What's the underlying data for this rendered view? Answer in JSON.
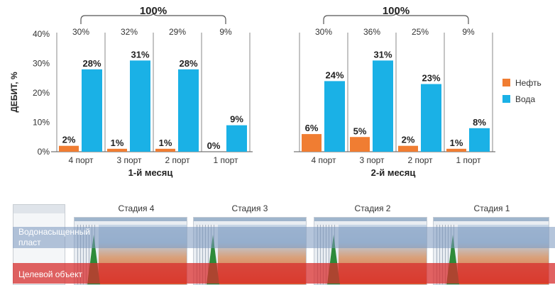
{
  "chart_data": {
    "type": "bar",
    "ylabel": "ДЕБИТ, %",
    "yticks": [
      "0%",
      "10%",
      "20%",
      "30%",
      "40%"
    ],
    "ylim": [
      0,
      40
    ],
    "legend": [
      {
        "name": "Нефть",
        "color": "#f07d32"
      },
      {
        "name": "Вода",
        "color": "#1ab1e6"
      }
    ],
    "groups": [
      {
        "label": "1-й месяц",
        "total": "100%",
        "categories": [
          "4 порт",
          "3 порт",
          "2 порт",
          "1 порт"
        ],
        "shares": [
          "30%",
          "32%",
          "29%",
          "9%"
        ],
        "oil": [
          2,
          1,
          1,
          0
        ],
        "oil_labels": [
          "2%",
          "1%",
          "1%",
          "0%"
        ],
        "water": [
          28,
          31,
          28,
          9
        ],
        "water_labels": [
          "28%",
          "31%",
          "28%",
          "9%"
        ]
      },
      {
        "label": "2-й месяц",
        "total": "100%",
        "categories": [
          "4 порт",
          "3 порт",
          "2 порт",
          "1 порт"
        ],
        "shares": [
          "30%",
          "36%",
          "25%",
          "9%"
        ],
        "oil": [
          6,
          5,
          2,
          1
        ],
        "oil_labels": [
          "6%",
          "5%",
          "2%",
          "1%"
        ],
        "water": [
          24,
          31,
          23,
          8
        ],
        "water_labels": [
          "24%",
          "31%",
          "23%",
          "8%"
        ]
      }
    ]
  },
  "strip": {
    "stages": [
      "Стадия 4",
      "Стадия 3",
      "Стадия 2",
      "Стадия 1"
    ],
    "water_zone_label": "Водонасыщенный пласт",
    "target_label": "Целевой объект"
  }
}
